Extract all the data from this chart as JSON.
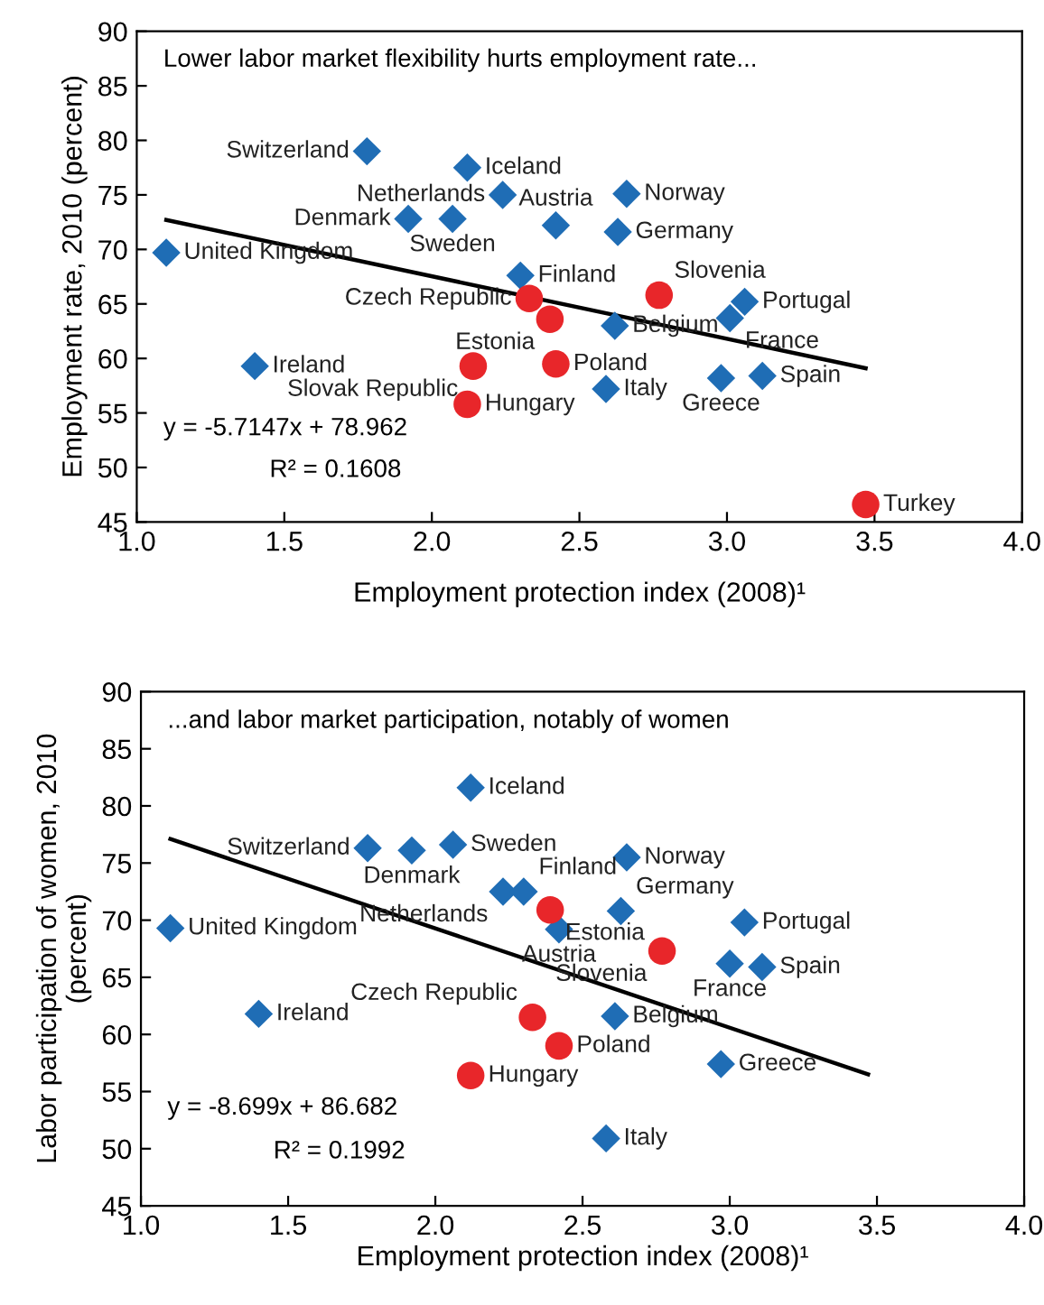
{
  "chart_data": [
    {
      "type": "scatter",
      "xlabel": "Employment protection index (2008)¹",
      "ylabel": "Employment rate, 2010 (percent)",
      "xlim": [
        1.0,
        4.0
      ],
      "xticks": [
        {
          "value": 1.0,
          "label": "1.0"
        },
        {
          "value": 1.5,
          "label": "1.5"
        },
        {
          "value": 2.0,
          "label": "2.0"
        },
        {
          "value": 2.5,
          "label": "2.5"
        },
        {
          "value": 3.0,
          "label": "3.0"
        },
        {
          "value": 3.5,
          "label": "3.5"
        },
        {
          "value": 4.0,
          "label": "4.0"
        }
      ],
      "ylim": [
        45,
        90
      ],
      "yticks": [
        45,
        50,
        55,
        60,
        65,
        70,
        75,
        80,
        85,
        90
      ],
      "series": [
        {
          "marker": "diamond",
          "color": "#1f6db5",
          "x": [
            1.1,
            1.4,
            1.78,
            1.92,
            2.07,
            2.12,
            2.24,
            2.42,
            2.3,
            2.66,
            2.63,
            2.62,
            2.59,
            3.06,
            3.01,
            2.98,
            3.12
          ],
          "values": [
            69.7,
            59.3,
            79.0,
            72.8,
            72.8,
            77.5,
            75.0,
            72.2,
            67.6,
            75.1,
            71.6,
            63.0,
            57.2,
            65.2,
            63.7,
            58.2,
            58.4
          ]
        },
        {
          "marker": "circle",
          "color": "#e8262a",
          "x": [
            2.33,
            2.4,
            2.77,
            2.14,
            2.12,
            2.42,
            3.47
          ],
          "values": [
            65.5,
            63.6,
            65.8,
            59.3,
            55.8,
            59.5,
            46.6
          ]
        },
        {
          "type": "line",
          "marker": "none",
          "line_style": "solid",
          "color": "#000000",
          "x": [
            1.1,
            3.47
          ],
          "values": [
            72.7,
            59.1
          ]
        }
      ],
      "annotations": [
        "Lower labor market flexibility hurts employment rate...",
        {
          "text": "United Kingdom",
          "x": 1.1,
          "y": 69.7
        },
        {
          "text": "Ireland",
          "x": 1.4,
          "y": 59.3
        },
        {
          "text": "Switzerland",
          "x": 1.78,
          "y": 79.0
        },
        {
          "text": "Denmark",
          "x": 1.92,
          "y": 72.8
        },
        {
          "text": "Sweden",
          "x": 2.07,
          "y": 72.8
        },
        {
          "text": "Iceland",
          "x": 2.12,
          "y": 77.5
        },
        {
          "text": "Netherlands",
          "x": 2.24,
          "y": 75.0
        },
        {
          "text": "Austria",
          "x": 2.42,
          "y": 72.2
        },
        {
          "text": "Finland",
          "x": 2.3,
          "y": 67.6
        },
        {
          "text": "Norway",
          "x": 2.66,
          "y": 75.1
        },
        {
          "text": "Germany",
          "x": 2.63,
          "y": 71.6
        },
        {
          "text": "Belgium",
          "x": 2.62,
          "y": 63.0
        },
        {
          "text": "Italy",
          "x": 2.59,
          "y": 57.2
        },
        {
          "text": "Portugal",
          "x": 3.06,
          "y": 65.2
        },
        {
          "text": "France",
          "x": 3.01,
          "y": 63.7
        },
        {
          "text": "Greece",
          "x": 2.98,
          "y": 58.2
        },
        {
          "text": "Spain",
          "x": 3.12,
          "y": 58.4
        },
        {
          "text": "Czech Republic",
          "x": 2.33,
          "y": 65.5
        },
        {
          "text": "Estonia",
          "x": 2.4,
          "y": 63.6
        },
        {
          "text": "Slovenia",
          "x": 2.77,
          "y": 65.8
        },
        {
          "text": "Slovak Republic",
          "x": 2.14,
          "y": 59.3
        },
        {
          "text": "Hungary",
          "x": 2.12,
          "y": 55.8
        },
        {
          "text": "Poland",
          "x": 2.42,
          "y": 59.5
        },
        {
          "text": "Turkey",
          "x": 3.47,
          "y": 46.6
        },
        "y = -5.7147x + 78.962",
        "R² = 0.1608"
      ]
    },
    {
      "type": "scatter",
      "xlabel": "Employment protection index (2008)¹",
      "ylabel": "Labor participation of women, 2010\n(percent)",
      "xlim": [
        1.0,
        4.0
      ],
      "xticks": [
        {
          "value": 1.0,
          "label": "1.0"
        },
        {
          "value": 1.5,
          "label": "1.5"
        },
        {
          "value": 2.0,
          "label": "2.0"
        },
        {
          "value": 2.5,
          "label": "2.5"
        },
        {
          "value": 3.0,
          "label": "3.0"
        },
        {
          "value": 3.5,
          "label": "3.5"
        },
        {
          "value": 4.0,
          "label": "4.0"
        }
      ],
      "ylim": [
        45,
        90
      ],
      "yticks": [
        45,
        50,
        55,
        60,
        65,
        70,
        75,
        80,
        85,
        90
      ],
      "series": [
        {
          "marker": "diamond",
          "color": "#1f6db5",
          "x": [
            1.1,
            1.4,
            1.77,
            1.92,
            2.06,
            2.12,
            2.23,
            2.3,
            2.42,
            2.63,
            2.65,
            3.05,
            3.0,
            3.11,
            2.61,
            2.97,
            2.58
          ],
          "values": [
            69.3,
            61.8,
            76.3,
            76.1,
            76.6,
            81.6,
            72.5,
            72.5,
            69.2,
            70.8,
            75.5,
            69.8,
            66.2,
            65.9,
            61.6,
            57.4,
            50.9
          ]
        },
        {
          "marker": "circle",
          "color": "#e8262a",
          "x": [
            2.39,
            2.77,
            2.33,
            2.42,
            2.12
          ],
          "values": [
            70.9,
            67.3,
            61.5,
            59.0,
            56.4
          ]
        },
        {
          "type": "line",
          "marker": "none",
          "line_style": "solid",
          "color": "#000000",
          "x": [
            1.1,
            3.47
          ],
          "values": [
            77.1,
            56.5
          ]
        }
      ],
      "annotations": [
        "...and labor market participation, notably of women",
        {
          "text": "United Kingdom",
          "x": 1.1,
          "y": 69.3
        },
        {
          "text": "Ireland",
          "x": 1.4,
          "y": 61.8
        },
        {
          "text": "Switzerland",
          "x": 1.77,
          "y": 76.3
        },
        {
          "text": "Denmark",
          "x": 1.92,
          "y": 76.1
        },
        {
          "text": "Sweden",
          "x": 2.06,
          "y": 76.6
        },
        {
          "text": "Iceland",
          "x": 2.12,
          "y": 81.6
        },
        {
          "text": "Netherlands",
          "x": 2.23,
          "y": 72.5
        },
        {
          "text": "Finland",
          "x": 2.3,
          "y": 72.5
        },
        {
          "text": "Austria",
          "x": 2.42,
          "y": 69.2
        },
        {
          "text": "Germany",
          "x": 2.63,
          "y": 70.8
        },
        {
          "text": "Norway",
          "x": 2.65,
          "y": 75.5
        },
        {
          "text": "Portugal",
          "x": 3.05,
          "y": 69.8
        },
        {
          "text": "France",
          "x": 3.0,
          "y": 66.2
        },
        {
          "text": "Spain",
          "x": 3.11,
          "y": 65.9
        },
        {
          "text": "Belgium",
          "x": 2.61,
          "y": 61.6
        },
        {
          "text": "Greece",
          "x": 2.97,
          "y": 57.4
        },
        {
          "text": "Italy",
          "x": 2.58,
          "y": 50.9
        },
        {
          "text": "Estonia",
          "x": 2.39,
          "y": 70.9
        },
        {
          "text": "Slovenia",
          "x": 2.77,
          "y": 67.3
        },
        {
          "text": "Czech Republic",
          "x": 2.33,
          "y": 61.5
        },
        {
          "text": "Poland",
          "x": 2.42,
          "y": 59.0
        },
        {
          "text": "Hungary",
          "x": 2.12,
          "y": 56.4
        },
        "y = -8.699x + 86.682",
        "R² = 0.1992"
      ]
    }
  ]
}
